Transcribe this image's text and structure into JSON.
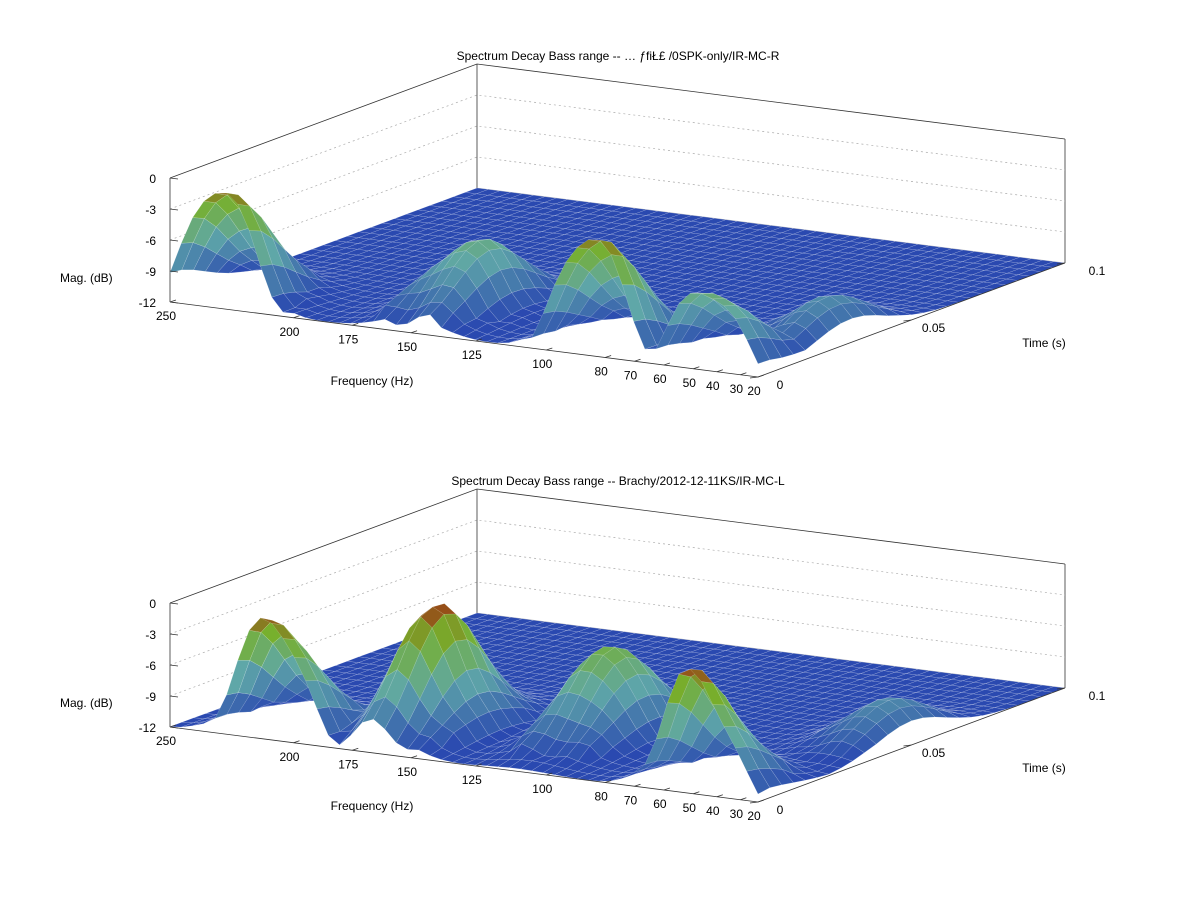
{
  "chart_data": [
    {
      "type": "surface",
      "title": "Spectrum Decay Bass range --   …     ƒfiŁ£  /0SPK-only/IR-MC-R",
      "xlabel": "Frequency (Hz)",
      "ylabel": "Time (s)",
      "zlabel": "Mag. (dB)",
      "x_ticks": [
        "250",
        "200",
        "175",
        "150",
        "125",
        "100",
        "80",
        "70",
        "60",
        "50",
        "40",
        "30",
        "20"
      ],
      "y_ticks": [
        "0",
        "0.05",
        "0.1"
      ],
      "z_ticks": [
        "0",
        "-3",
        "-6",
        "-9",
        "-12"
      ],
      "zlim": [
        -12,
        0
      ],
      "ylim": [
        0,
        0.1
      ],
      "grid": true,
      "peaks": [
        {
          "freq": 230,
          "time": 0.0,
          "mag": 0
        },
        {
          "freq": 150,
          "time": 0.02,
          "mag": -5
        },
        {
          "freq": 85,
          "time": 0.0,
          "mag": 0
        },
        {
          "freq": 45,
          "time": 0.0,
          "mag": -4
        },
        {
          "freq": 35,
          "time": 0.03,
          "mag": -8
        }
      ]
    },
    {
      "type": "surface",
      "title": "Spectrum Decay Bass range -- Brachy/2012-12-11KS/IR-MC-L",
      "xlabel": "Frequency (Hz)",
      "ylabel": "Time (s)",
      "zlabel": "Mag. (dB)",
      "x_ticks": [
        "250",
        "200",
        "175",
        "150",
        "125",
        "100",
        "80",
        "70",
        "60",
        "50",
        "40",
        "30",
        "20"
      ],
      "y_ticks": [
        "0",
        "0.05",
        "0.1"
      ],
      "z_ticks": [
        "0",
        "-3",
        "-6",
        "-9",
        "-12"
      ],
      "zlim": [
        -12,
        0
      ],
      "ylim": [
        0,
        0.1
      ],
      "grid": true,
      "peaks": [
        {
          "freq": 210,
          "time": 0.0,
          "mag": 0
        },
        {
          "freq": 165,
          "time": 0.02,
          "mag": 0
        },
        {
          "freq": 110,
          "time": 0.03,
          "mag": -3
        },
        {
          "freq": 50,
          "time": 0.0,
          "mag": 0
        },
        {
          "freq": 35,
          "time": 0.05,
          "mag": -8
        }
      ]
    }
  ],
  "colors": {
    "low": "#2a49b0",
    "mid": "#5fa7a8",
    "high": "#77b02c",
    "peak": "#9c3b14",
    "grid": "#aaaaaa",
    "axis": "#333333"
  }
}
